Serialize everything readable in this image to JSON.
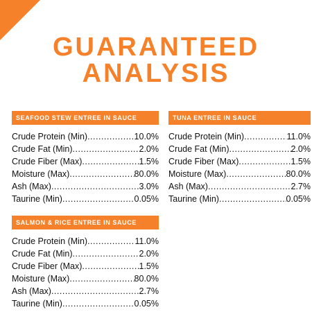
{
  "title": {
    "line1": "GUARANTEED",
    "line2": "ANALYSIS"
  },
  "colors": {
    "accent": "#f5822a",
    "text": "#111111"
  },
  "sections": [
    {
      "heading": "SEAFOOD STEW ENTREE IN SAUCE",
      "rows": [
        {
          "label": "Crude Protein (Min)",
          "value": "10.0%"
        },
        {
          "label": "Crude Fat (Min)",
          "value": "2.0%"
        },
        {
          "label": "Crude Fiber (Max)",
          "value": "1.5%"
        },
        {
          "label": "Moisture (Max)",
          "value": "80.0%"
        },
        {
          "label": "Ash (Max)",
          "value": "3.0%"
        },
        {
          "label": "Taurine (Min)",
          "value": "0.05%"
        }
      ]
    },
    {
      "heading": "TUNA ENTREE IN SAUCE",
      "rows": [
        {
          "label": "Crude Protein (Min)",
          "value": "11.0%"
        },
        {
          "label": "Crude Fat (Min)",
          "value": "2.0%"
        },
        {
          "label": "Crude Fiber (Max)",
          "value": "1.5%"
        },
        {
          "label": "Moisture (Max)",
          "value": "80.0%"
        },
        {
          "label": "Ash (Max)",
          "value": "2.7%"
        },
        {
          "label": "Taurine (Min)",
          "value": "0.05%"
        }
      ]
    },
    {
      "heading": "SALMON & RICE ENTREE IN SAUCE",
      "rows": [
        {
          "label": "Crude Protein (Min)",
          "value": "11.0%"
        },
        {
          "label": "Crude Fat (Min)",
          "value": "2.0%"
        },
        {
          "label": "Crude Fiber (Max)",
          "value": "1.5%"
        },
        {
          "label": "Moisture (Max)",
          "value": "80.0%"
        },
        {
          "label": "Ash (Max)",
          "value": "2.7%"
        },
        {
          "label": "Taurine (Min)",
          "value": "0.05%"
        }
      ]
    }
  ]
}
